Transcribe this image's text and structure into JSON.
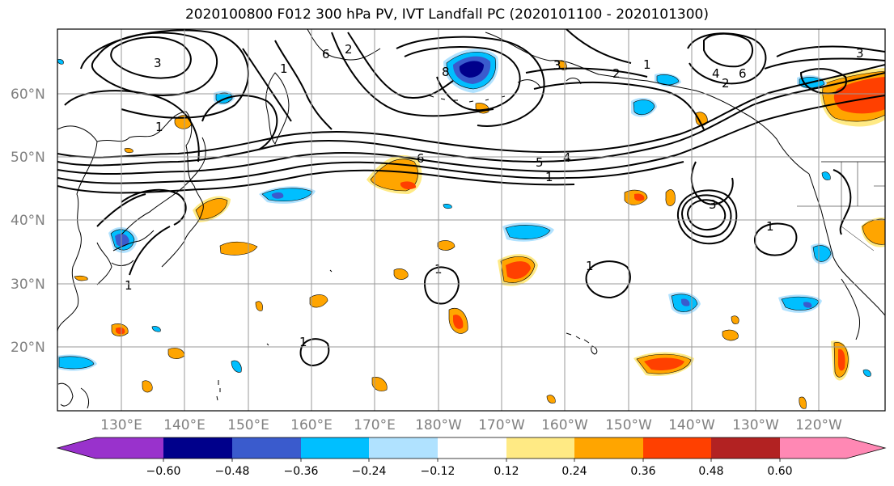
{
  "title": "2020100800 F012 300 hPa PV, IVT Landfall PC (2020101100 - 2020101300)",
  "map": {
    "lat_labels": [
      "60°N",
      "50°N",
      "40°N",
      "30°N",
      "20°N"
    ],
    "lon_labels": [
      "130°E",
      "140°E",
      "150°E",
      "160°E",
      "170°E",
      "180°W",
      "170°W",
      "160°W",
      "150°W",
      "140°W",
      "130°W",
      "120°W"
    ],
    "contour_labels": [
      "3",
      "6",
      "2",
      "1",
      "8",
      "2",
      "1",
      "4",
      "6",
      "3",
      "3",
      "6",
      "5",
      "4",
      "1",
      "3",
      "1",
      "1",
      "1",
      "1",
      "1",
      "1",
      "2"
    ]
  },
  "colorbar": {
    "ticks": [
      "−0.60",
      "−0.48",
      "−0.36",
      "−0.24",
      "−0.12",
      "0.12",
      "0.24",
      "0.36",
      "0.48",
      "0.60"
    ],
    "colors": {
      "purple": "#9932cc",
      "navy": "#00008b",
      "royal": "#3a5bcd",
      "deepsky": "#00bfff",
      "lightblue": "#b0e2ff",
      "white": "#ffffff",
      "lightyellow": "#ffea84",
      "orange": "#ffa500",
      "orangered": "#ff4000",
      "firebrick": "#b22222",
      "pink": "#ff88b4"
    }
  }
}
